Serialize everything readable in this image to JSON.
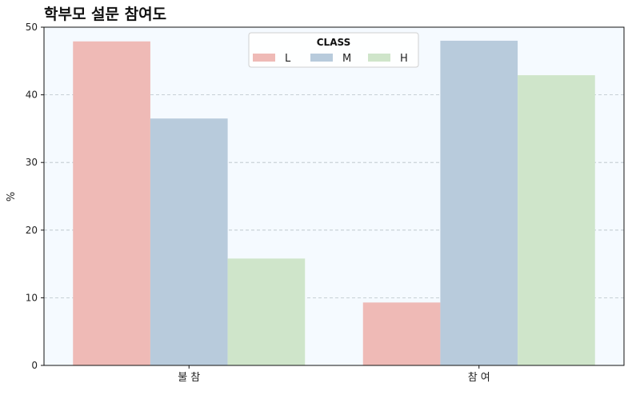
{
  "chart_data": {
    "type": "bar",
    "title": "학부모 설문 참여도",
    "xlabel": "",
    "ylabel": "%",
    "categories": [
      "불 참",
      "참 여"
    ],
    "series": [
      {
        "name": "L",
        "values": [
          47.9,
          9.3
        ],
        "color": "#efbab6"
      },
      {
        "name": "M",
        "values": [
          36.5,
          48.0
        ],
        "color": "#b8cbdc"
      },
      {
        "name": "H",
        "values": [
          15.8,
          42.9
        ],
        "color": "#cfe5ca"
      }
    ],
    "ylim": [
      0,
      50
    ],
    "yticks": [
      0,
      10,
      20,
      30,
      40,
      50
    ],
    "grid": "y-dashed",
    "legend": {
      "title": "CLASS",
      "placement": "top-center",
      "ncol": 3
    },
    "plot_background": "#f5faff"
  }
}
